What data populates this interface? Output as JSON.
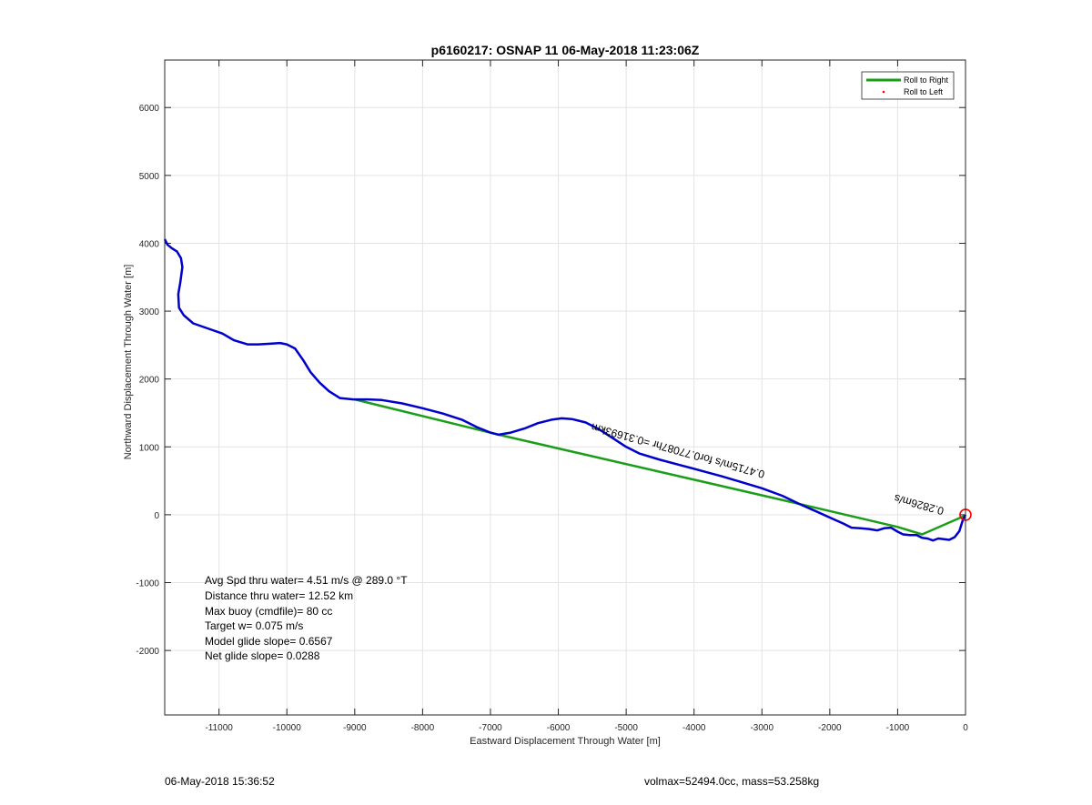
{
  "chart_data": {
    "type": "line",
    "title": "p6160217: OSNAP 11 06-May-2018 11:23:06Z",
    "xlabel": "Eastward Displacement Through Water [m]",
    "ylabel": "Northward Displacement Through Water [m]",
    "xlim": [
      -11800,
      0
    ],
    "ylim": [
      -2950,
      6700
    ],
    "xticks": [
      -11000,
      -10000,
      -9000,
      -8000,
      -7000,
      -6000,
      -5000,
      -4000,
      -3000,
      -2000,
      -1000,
      0
    ],
    "yticks": [
      -2000,
      -1000,
      0,
      1000,
      2000,
      3000,
      4000,
      5000,
      6000
    ],
    "grid": true,
    "legend_position": "top-right",
    "legend": [
      {
        "name": "Roll to Right",
        "color": "#1a9e1a",
        "marker": "line"
      },
      {
        "name": "Roll to Left",
        "color": "#ff0000",
        "marker": "dot"
      }
    ],
    "series": [
      {
        "color": "#0000cc",
        "x": [
          -11800,
          -11760,
          -11700,
          -11620,
          -11560,
          -11540,
          -11570,
          -11600,
          -11590,
          -11520,
          -11380,
          -11150,
          -10950,
          -10780,
          -10580,
          -10420,
          -10250,
          -10100,
          -10000,
          -9880,
          -9760,
          -9650,
          -9520,
          -9380,
          -9220,
          -9020,
          -8800,
          -8600,
          -8300,
          -8000,
          -7700,
          -7420,
          -7200,
          -7000,
          -6880,
          -6700,
          -6500,
          -6300,
          -6100,
          -5950,
          -5800,
          -5600,
          -5400,
          -5200,
          -5000,
          -4800,
          -4500,
          -4200,
          -3900,
          -3600,
          -3300,
          -3000,
          -2700,
          -2450,
          -2200,
          -1980,
          -1800,
          -1680,
          -1550,
          -1420,
          -1300,
          -1200,
          -1100,
          -1000,
          -920,
          -820,
          -720,
          -640,
          -560,
          -480,
          -400,
          -320,
          -240,
          -160,
          -90,
          -40,
          0
        ],
        "y": [
          4060,
          3980,
          3930,
          3880,
          3780,
          3650,
          3430,
          3250,
          3050,
          2940,
          2820,
          2740,
          2670,
          2570,
          2510,
          2510,
          2520,
          2530,
          2510,
          2450,
          2280,
          2100,
          1950,
          1820,
          1720,
          1700,
          1700,
          1690,
          1640,
          1570,
          1490,
          1400,
          1290,
          1210,
          1180,
          1210,
          1270,
          1350,
          1400,
          1420,
          1410,
          1360,
          1260,
          1130,
          1000,
          900,
          810,
          730,
          650,
          570,
          480,
          390,
          280,
          160,
          50,
          -50,
          -130,
          -190,
          -200,
          -210,
          -230,
          -200,
          -190,
          -250,
          -290,
          -300,
          -300,
          -340,
          -350,
          -380,
          -350,
          -360,
          -370,
          -330,
          -240,
          -80,
          0
        ]
      },
      {
        "color": "#1a9e1a",
        "segments": [
          [
            [
              -9000,
              1700
            ],
            [
              -6880,
              1180
            ],
            [
              -2450,
              160
            ],
            [
              -1000,
              -180
            ],
            [
              -640,
              -290
            ],
            [
              0,
              -10
            ]
          ]
        ]
      }
    ],
    "annotations": [
      {
        "text": "0.4715m/s for0.77087hr =0.31693km",
        "x": -2950,
        "y": 640,
        "rotation": 195.5
      },
      {
        "text": "0.2826m/s",
        "x": -310,
        "y": 100,
        "rotation": 195.5
      }
    ],
    "target_marker": {
      "x": 0,
      "y": 0,
      "color": "#ff0000"
    },
    "info_box": [
      "Avg Spd thru water=  4.51 m/s @ 289.0 °T",
      "Distance thru water= 12.52 km",
      "Max buoy (cmdfile)= 80 cc",
      "Target w= 0.075 m/s",
      "Model glide slope= 0.6567",
      "Net glide slope= 0.0288"
    ]
  },
  "footer": {
    "timestamp": "06-May-2018 15:36:52",
    "vehicle": "volmax=52494.0cc, mass=53.258kg"
  }
}
